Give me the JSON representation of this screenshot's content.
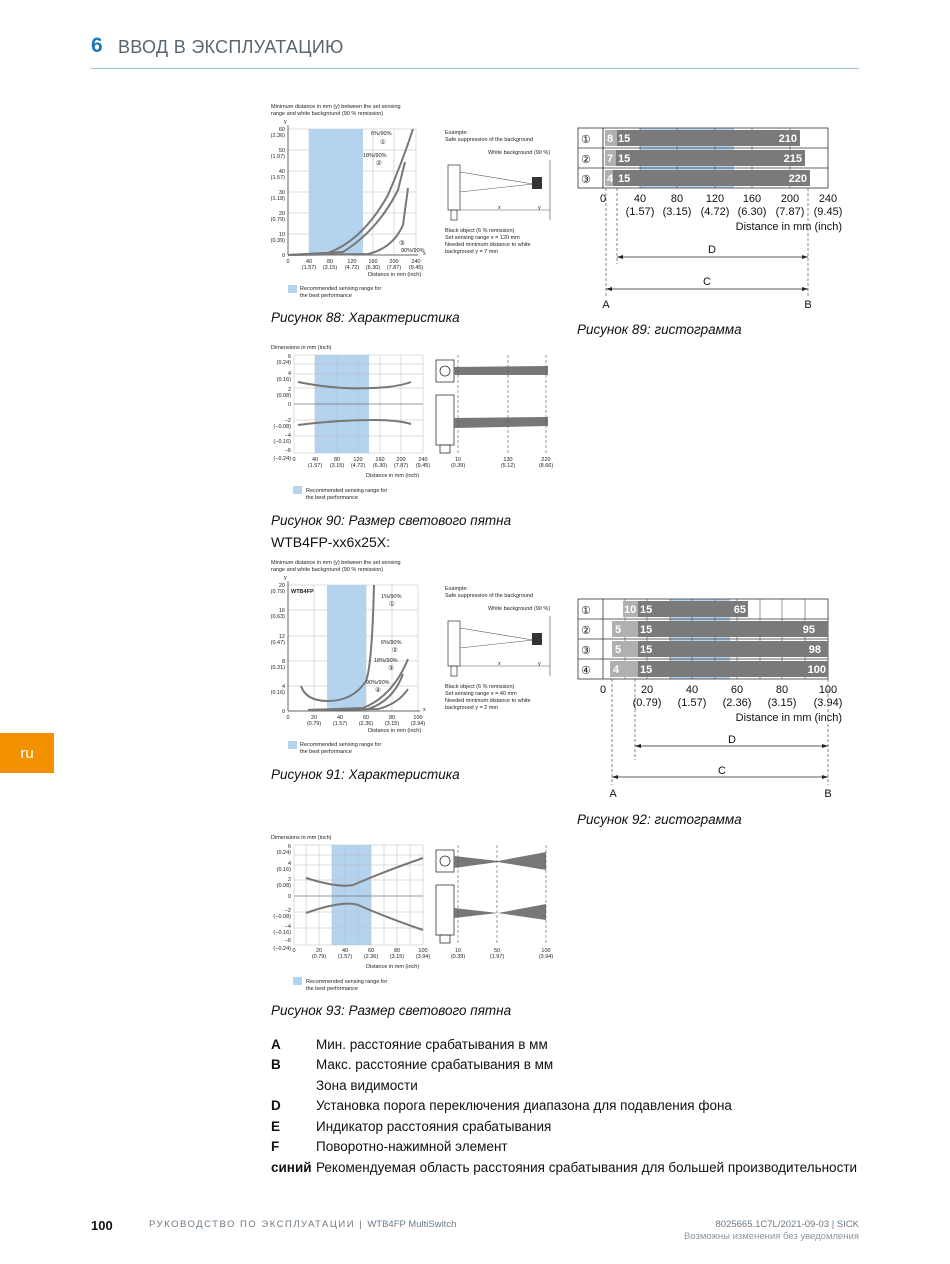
{
  "header": {
    "chapter_num": "6",
    "chapter_title": "ВВОД В ЭКСПЛУАТАЦИЮ"
  },
  "side_tab": "ru",
  "captions": {
    "fig88": "Рисунок 88: Характеристика",
    "fig89": "Рисунок 89: гистограмма",
    "fig90": "Рисунок 90: Размер светового пятна",
    "model_heading": "WTB4FP-xx6x25X:",
    "fig91": "Рисунок 91: Характеристика",
    "fig92": "Рисунок 92: гистограмма",
    "fig93": "Рисунок 93: Размер светового пятна"
  },
  "fig_text": {
    "min_dist_1": "Minimum distance in mm (y) between the set sensing",
    "min_dist_2": "range and white background (90 % remission)",
    "example": "Example:",
    "safe_supp": "Safe suppression of the background",
    "white_bg": "White background (90 %)",
    "black_obj": "Black object (6 % remission)",
    "needed_1": "Needed minimum distance to white",
    "needed_2": "background y = 7 mm",
    "needed_2b": "background y = 2 mm",
    "set_range_1": "Set sensing range x = 120 mm",
    "set_range_2": "Set sensing range x = 40 mm",
    "dist_inch": "Distance in mm (inch)",
    "rec_1": "Recommended sensing range for",
    "rec_2": "the best performance",
    "dims": "Dimensions in mm (inch)",
    "wtb4fp": "WTB4FP",
    "curve_6_90": "6%/90%",
    "curve_18_90": "18%/90%",
    "curve_90_90": "90%/90%",
    "curve_1_90": "1%/90%",
    "letter_a": "A",
    "letter_b": "B",
    "letter_c": "C",
    "letter_d": "D"
  },
  "charts": {
    "fig89": {
      "rows": [
        {
          "num": "①",
          "a": "8",
          "b": "15",
          "c": "210"
        },
        {
          "num": "②",
          "a": "7",
          "b": "15",
          "c": "215"
        },
        {
          "num": "③",
          "a": "4",
          "b": "15",
          "c": "220"
        }
      ],
      "ticks": [
        {
          "v": "0",
          "i": ""
        },
        {
          "v": "40",
          "i": "(1.57)"
        },
        {
          "v": "80",
          "i": "(3.15)"
        },
        {
          "v": "120",
          "i": "(4.72)"
        },
        {
          "v": "160",
          "i": "(6.30)"
        },
        {
          "v": "200",
          "i": "(7.87)"
        },
        {
          "v": "240",
          "i": "(9.45)"
        }
      ],
      "xlabel": "Distance in mm (inch)"
    },
    "fig92": {
      "rows": [
        {
          "num": "①",
          "a": "10",
          "b": "15",
          "c": "65"
        },
        {
          "num": "②",
          "a": "5",
          "b": "15",
          "c": "95"
        },
        {
          "num": "③",
          "a": "5",
          "b": "15",
          "c": "98"
        },
        {
          "num": "④",
          "a": "4",
          "b": "15",
          "c": "100"
        }
      ],
      "ticks": [
        {
          "v": "0",
          "i": ""
        },
        {
          "v": "20",
          "i": "(0.79)"
        },
        {
          "v": "40",
          "i": "(1.57)"
        },
        {
          "v": "60",
          "i": "(2.36)"
        },
        {
          "v": "80",
          "i": "(3.15)"
        },
        {
          "v": "100",
          "i": "(3.94)"
        }
      ],
      "xlabel": "Distance in mm (inch)"
    }
  },
  "legend": [
    {
      "key": "A",
      "text": "Мин. расстояние срабатывания в мм"
    },
    {
      "key": "B",
      "text": "Макс. расстояние срабатывания в мм"
    },
    {
      "key": "",
      "text": "Зона видимости"
    },
    {
      "key": "D",
      "text": "Установка порога переключения диапазона для подавления фона"
    },
    {
      "key": "E",
      "text": "Индикатор расстояния срабатывания"
    },
    {
      "key": "F",
      "text": "Поворотно-нажимной элемент"
    },
    {
      "key": "синий",
      "text": "Рекомендуемая область расстояния срабатывания для большей производительности"
    }
  ],
  "footer": {
    "page": "100",
    "left": "РУКОВОДСТВО ПО ЭКСПЛУАТАЦИИ",
    "sep": " | ",
    "product": "WTB4FP MultiSwitch",
    "right1": "8025665.1C7L/2021-09-03 | SICK",
    "right2": "Возможны изменения без уведомления"
  },
  "colors": {
    "accent": "#1a7ab8",
    "tab": "#f29100",
    "blue_zone": "#b4d3ee",
    "bar": "#7a7a7a",
    "bar_light": "#b0b0b0"
  }
}
